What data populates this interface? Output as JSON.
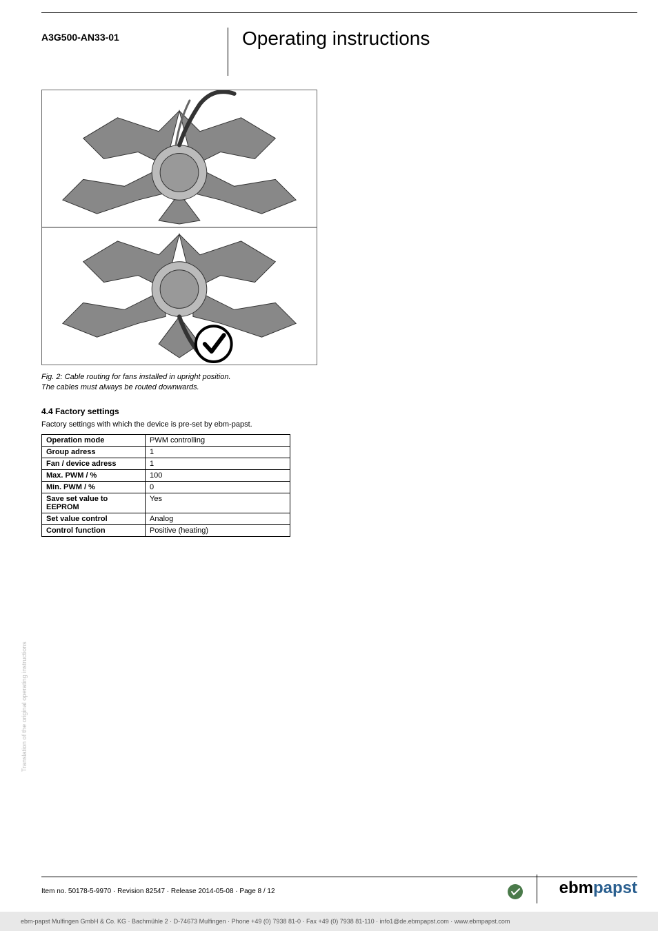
{
  "header": {
    "product_code": "A3G500-AN33-01",
    "title": "Operating instructions"
  },
  "figure": {
    "caption_line1": "Fig. 2: Cable routing for fans installed in upright position.",
    "caption_line2": "The cables must always be routed downwards.",
    "colors": {
      "border": "#666666",
      "blade_fill": "#888888",
      "blade_outline": "#333333",
      "hub_fill": "#bbbbbb",
      "hub_outline": "#333333",
      "divider": "#333333",
      "check_bg": "#ffffff",
      "check_stroke": "#000000"
    }
  },
  "section": {
    "heading": "4.4 Factory settings",
    "description": "Factory settings with which the device is pre-set by ebm-papst."
  },
  "settings_table": {
    "rows": [
      {
        "label": "Operation mode",
        "value": "PWM controlling"
      },
      {
        "label": "Group adress",
        "value": "1"
      },
      {
        "label": "Fan / device adress",
        "value": "1"
      },
      {
        "label": "Max. PWM / %",
        "value": "100"
      },
      {
        "label": "Min. PWM / %",
        "value": "0"
      },
      {
        "label": "Save set value to EEPROM",
        "value": "Yes"
      },
      {
        "label": "Set value control",
        "value": "Analog"
      },
      {
        "label": "Control function",
        "value": "Positive (heating)"
      }
    ]
  },
  "side_text": "Translation of the original operating instructions",
  "footer": {
    "left": "Item no. 50178-5-9970 · Revision 82547 · Release 2014-05-08 · Page 8 / 12",
    "logo_ebm": "ebm",
    "logo_papst": "papst",
    "icon_color": "#4a7a4a",
    "bottom": "ebm-papst Mulfingen GmbH & Co. KG · Bachmühle 2 · D-74673 Mulfingen · Phone +49 (0) 7938 81-0 · Fax +49 (0) 7938 81-110 · info1@de.ebmpapst.com · www.ebmpapst.com"
  }
}
